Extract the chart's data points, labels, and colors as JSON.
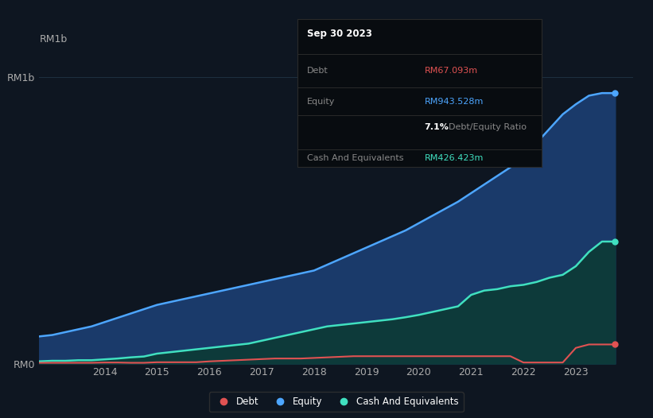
{
  "background_color": "#0e1621",
  "plot_bg_color": "#0e1621",
  "grid_color": "#1e3040",
  "ylabel": "RM1b",
  "ylabel_color": "#aaaaaa",
  "years": [
    2012.75,
    2013.0,
    2013.25,
    2013.5,
    2013.75,
    2014.0,
    2014.25,
    2014.5,
    2014.75,
    2015.0,
    2015.25,
    2015.5,
    2015.75,
    2016.0,
    2016.25,
    2016.5,
    2016.75,
    2017.0,
    2017.25,
    2017.5,
    2017.75,
    2018.0,
    2018.25,
    2018.5,
    2018.75,
    2019.0,
    2019.25,
    2019.5,
    2019.75,
    2020.0,
    2020.25,
    2020.5,
    2020.75,
    2021.0,
    2021.25,
    2021.5,
    2021.75,
    2022.0,
    2022.25,
    2022.5,
    2022.75,
    2023.0,
    2023.25,
    2023.5,
    2023.75
  ],
  "debt": [
    0.003,
    0.003,
    0.003,
    0.003,
    0.003,
    0.004,
    0.004,
    0.003,
    0.003,
    0.005,
    0.005,
    0.005,
    0.005,
    0.008,
    0.01,
    0.012,
    0.014,
    0.016,
    0.018,
    0.018,
    0.018,
    0.02,
    0.022,
    0.024,
    0.026,
    0.026,
    0.026,
    0.026,
    0.026,
    0.026,
    0.026,
    0.026,
    0.026,
    0.026,
    0.026,
    0.026,
    0.026,
    0.004,
    0.004,
    0.004,
    0.004,
    0.055,
    0.067,
    0.067,
    0.067
  ],
  "equity": [
    0.095,
    0.1,
    0.11,
    0.12,
    0.13,
    0.145,
    0.16,
    0.175,
    0.19,
    0.205,
    0.215,
    0.225,
    0.235,
    0.245,
    0.255,
    0.265,
    0.275,
    0.285,
    0.295,
    0.305,
    0.315,
    0.325,
    0.345,
    0.365,
    0.385,
    0.405,
    0.425,
    0.445,
    0.465,
    0.49,
    0.515,
    0.54,
    0.565,
    0.595,
    0.625,
    0.655,
    0.685,
    0.72,
    0.77,
    0.82,
    0.87,
    0.905,
    0.935,
    0.944,
    0.944
  ],
  "cash": [
    0.008,
    0.01,
    0.01,
    0.012,
    0.012,
    0.015,
    0.018,
    0.022,
    0.025,
    0.035,
    0.04,
    0.045,
    0.05,
    0.055,
    0.06,
    0.065,
    0.07,
    0.08,
    0.09,
    0.1,
    0.11,
    0.12,
    0.13,
    0.135,
    0.14,
    0.145,
    0.15,
    0.155,
    0.162,
    0.17,
    0.18,
    0.19,
    0.2,
    0.24,
    0.255,
    0.26,
    0.27,
    0.275,
    0.285,
    0.3,
    0.31,
    0.34,
    0.39,
    0.426,
    0.426
  ],
  "debt_color": "#e05252",
  "equity_color": "#4da6ff",
  "cash_color": "#40e0c0",
  "fill_equity_color": "#1a3a6a",
  "fill_cash_color": "#0d3a3a",
  "xtick_labels": [
    "2014",
    "2015",
    "2016",
    "2017",
    "2018",
    "2019",
    "2020",
    "2021",
    "2022",
    "2023"
  ],
  "xtick_positions": [
    2014,
    2015,
    2016,
    2017,
    2018,
    2019,
    2020,
    2021,
    2022,
    2023
  ],
  "tooltip_title": "Sep 30 2023",
  "tooltip_debt_label": "Debt",
  "tooltip_debt_value": "RM67.093m",
  "tooltip_equity_label": "Equity",
  "tooltip_equity_value": "RM943.528m",
  "tooltip_ratio_value": "7.1%",
  "tooltip_ratio_label": "Debt/Equity Ratio",
  "tooltip_cash_label": "Cash And Equivalents",
  "tooltip_cash_value": "RM426.423m",
  "tooltip_bg": "#080c10",
  "tooltip_border": "#2a2a2a",
  "legend_labels": [
    "Debt",
    "Equity",
    "Cash And Equivalents"
  ],
  "legend_colors": [
    "#e05252",
    "#4da6ff",
    "#40e0c0"
  ],
  "ylim": [
    0,
    1.05
  ],
  "xlim": [
    2012.75,
    2024.1
  ],
  "ytick_labels": [
    "RM0",
    "RM1b"
  ],
  "ytick_positions": [
    0,
    1.0
  ]
}
